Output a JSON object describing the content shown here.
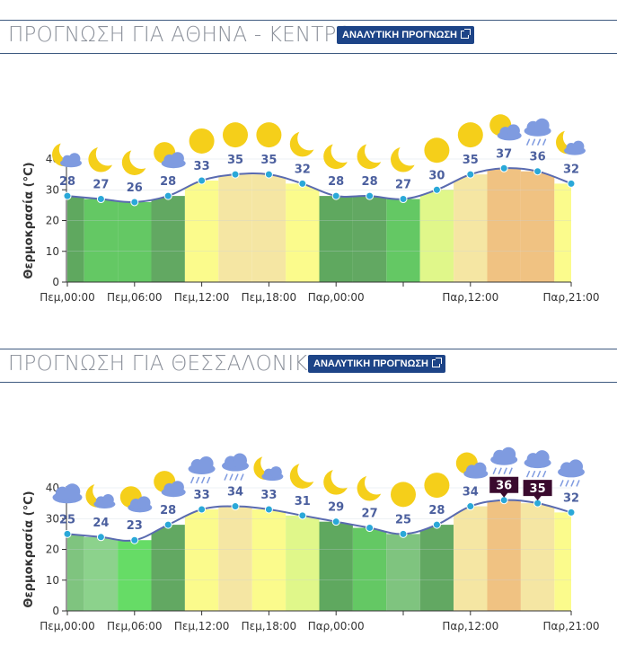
{
  "charts": [
    {
      "title": "ΠΡΟΓΝΩΣΗ ΓΙΑ ΑΘΗΝΑ - ΚΕΝΤΡΟ",
      "button_label": "ΑΝΑΛΥΤΙΚΗ ΠΡΟΓΝΩΣΗ",
      "chart_data": {
        "type": "area",
        "ylabel": "Θερμοκρασία (°C)",
        "ylim": [
          0,
          40
        ],
        "yticks": [
          0,
          10,
          20,
          30,
          40
        ],
        "x_tick_labels": [
          "Πεμ,00:00",
          "Πεμ,06:00",
          "Πεμ,12:00",
          "Πεμ,18:00",
          "Παρ,00:00",
          "",
          "Παρ,12:00",
          "Παρ,21:00"
        ],
        "values": [
          28,
          27,
          26,
          28,
          33,
          35,
          35,
          32,
          28,
          28,
          27,
          30,
          35,
          37,
          36,
          32
        ],
        "icons": [
          "moon-cloud-icon",
          "moon-icon",
          "moon-icon",
          "sun-cloud-icon",
          "sun-icon",
          "sun-icon",
          "sun-icon",
          "moon-icon",
          "moon-icon",
          "moon-icon",
          "moon-icon",
          "sun-icon",
          "sun-icon",
          "sun-cloud-icon",
          "rain-icon",
          "moon-cloud-icon"
        ],
        "warnings": [
          false,
          false,
          false,
          false,
          false,
          false,
          false,
          false,
          false,
          false,
          false,
          false,
          false,
          false,
          false,
          false
        ]
      }
    },
    {
      "title": "ΠΡΟΓΝΩΣΗ ΓΙΑ ΘΕΣΣΑΛΟΝΙΚΗ",
      "button_label": "ΑΝΑΛΥΤΙΚΗ ΠΡΟΓΝΩΣΗ",
      "chart_data": {
        "type": "area",
        "ylabel": "Θερμοκρασία (°C)",
        "ylim": [
          0,
          40
        ],
        "yticks": [
          0,
          10,
          20,
          30,
          40
        ],
        "x_tick_labels": [
          "Πεμ,00:00",
          "Πεμ,06:00",
          "Πεμ,12:00",
          "Πεμ,18:00",
          "Παρ,00:00",
          "",
          "Παρ,12:00",
          "Παρ,21:00"
        ],
        "values": [
          25,
          24,
          23,
          28,
          33,
          34,
          33,
          31,
          29,
          27,
          25,
          28,
          34,
          36,
          35,
          32
        ],
        "icons": [
          "cloud-icon",
          "moon-cloud-icon",
          "sun-cloud-icon",
          "sun-cloud-icon",
          "rain-icon",
          "rain-icon",
          "moon-cloud-icon",
          "moon-icon",
          "moon-icon",
          "moon-icon",
          "sun-icon",
          "sun-icon",
          "sun-cloud-icon",
          "rain-icon",
          "rain-icon",
          "rain-icon"
        ],
        "warnings": [
          false,
          false,
          false,
          false,
          false,
          false,
          false,
          false,
          false,
          false,
          false,
          false,
          false,
          true,
          true,
          false
        ]
      }
    }
  ],
  "colors": {
    "header_line": "#3e5a80",
    "button_bg": "#1d4487",
    "line": "#5a6bb0",
    "point": "#2aa8d8",
    "value_label": "#4b5f9e",
    "sun": "#f5cf1a",
    "cloud": "#7f9be0",
    "warning_bg": "#3a0a2e"
  }
}
